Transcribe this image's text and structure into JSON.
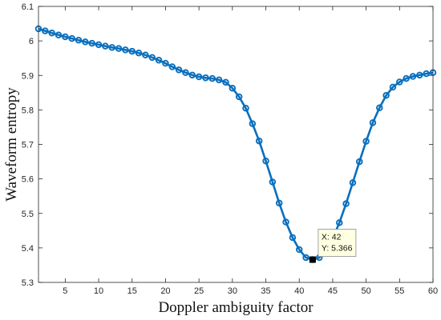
{
  "chart_data": {
    "type": "line",
    "title": "",
    "xlabel": "Doppler ambiguity factor",
    "ylabel": "Waveform entropy",
    "xlim": [
      1,
      60
    ],
    "ylim": [
      5.3,
      6.1
    ],
    "xticks": [
      5,
      10,
      15,
      20,
      25,
      30,
      35,
      40,
      45,
      50,
      55,
      60
    ],
    "yticks": [
      5.3,
      5.4,
      5.5,
      5.6,
      5.7,
      5.8,
      5.9,
      6.0,
      6.1
    ],
    "ytick_labels": [
      "5.3",
      "5.4",
      "5.5",
      "5.6",
      "5.7",
      "5.8",
      "5.9",
      "6",
      "6.1"
    ],
    "grid": false,
    "legend": "none",
    "series": [
      {
        "color": "#0a6fbd",
        "marker": "circle",
        "x": [
          1,
          2,
          3,
          4,
          5,
          6,
          7,
          8,
          9,
          10,
          11,
          12,
          13,
          14,
          15,
          16,
          17,
          18,
          19,
          20,
          21,
          22,
          23,
          24,
          25,
          26,
          27,
          28,
          29,
          30,
          31,
          32,
          33,
          34,
          35,
          36,
          37,
          38,
          39,
          40,
          41,
          42,
          43,
          44,
          45,
          46,
          47,
          48,
          49,
          50,
          51,
          52,
          53,
          54,
          55,
          56,
          57,
          58,
          59,
          60
        ],
        "y": [
          6.035,
          6.029,
          6.023,
          6.017,
          6.012,
          6.007,
          6.002,
          5.997,
          5.993,
          5.989,
          5.985,
          5.981,
          5.978,
          5.974,
          5.97,
          5.965,
          5.959,
          5.952,
          5.944,
          5.935,
          5.925,
          5.916,
          5.908,
          5.901,
          5.896,
          5.893,
          5.891,
          5.887,
          5.88,
          5.863,
          5.838,
          5.805,
          5.76,
          5.71,
          5.652,
          5.591,
          5.53,
          5.475,
          5.43,
          5.395,
          5.372,
          5.366,
          5.372,
          5.398,
          5.427,
          5.473,
          5.528,
          5.589,
          5.65,
          5.709,
          5.763,
          5.806,
          5.842,
          5.866,
          5.881,
          5.891,
          5.897,
          5.901,
          5.905,
          5.908
        ]
      }
    ],
    "datatip": {
      "x_label": "X: 42",
      "y_label": "Y: 5.366",
      "x": 42,
      "y": 5.366
    }
  }
}
